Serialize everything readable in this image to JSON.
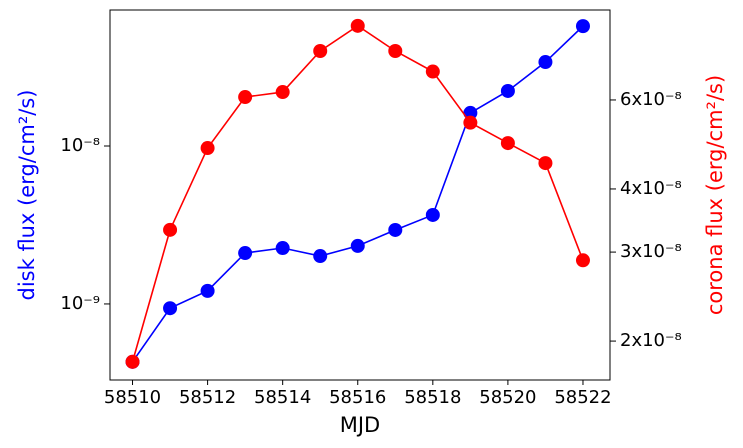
{
  "chart_data": {
    "type": "line",
    "xlabel": "MJD",
    "ylabel": "disk flux (erg/cm²/s)",
    "y2label": "corona flux (erg/cm²/s)",
    "x": [
      58510,
      58511,
      58512,
      58513,
      58514,
      58515,
      58516,
      58517,
      58518,
      58519,
      58520,
      58521,
      58522
    ],
    "series": [
      {
        "name": "disk flux",
        "color": "#0000ff",
        "axis": "y",
        "values": [
          4.3e-10,
          9.4e-10,
          1.21e-09,
          2.1e-09,
          2.26e-09,
          2.01e-09,
          2.33e-09,
          2.94e-09,
          3.66e-09,
          1.62e-08,
          2.23e-08,
          3.4e-08,
          5.74e-08
        ]
      },
      {
        "name": "corona flux",
        "color": "#ff0000",
        "axis": "y2",
        "values": [
          1.82e-08,
          3.32e-08,
          4.82e-08,
          6.08e-08,
          6.22e-08,
          7.5e-08,
          8.41e-08,
          7.5e-08,
          6.83e-08,
          5.41e-08,
          4.93e-08,
          4.5e-08,
          2.89e-08
        ]
      }
    ],
    "xlim": [
      58509.4,
      58522.72
    ],
    "xticks": [
      58510,
      58512,
      58514,
      58516,
      58518,
      58520,
      58522
    ],
    "ylim": [
      3.3e-10,
      7.26e-08
    ],
    "ylog": true,
    "yticks": [
      {
        "value": 1e-09,
        "label": "10⁻⁹"
      },
      {
        "value": 1e-08,
        "label": "10⁻⁸"
      }
    ],
    "y2lim": [
      1.675e-08,
      9.04e-08
    ],
    "y2log": true,
    "y2ticks": [
      {
        "value": 2e-08,
        "label": "2x10⁻⁸"
      },
      {
        "value": 3e-08,
        "label": "3x10⁻⁸"
      },
      {
        "value": 4e-08,
        "label": "4x10⁻⁸"
      },
      {
        "value": 6e-08,
        "label": "6x10⁻⁸"
      }
    ]
  }
}
